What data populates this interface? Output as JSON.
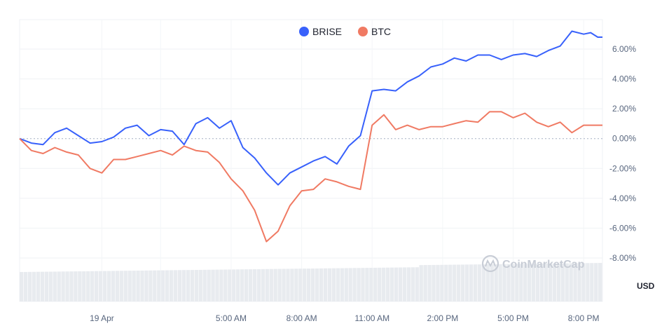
{
  "chart_data": {
    "type": "line",
    "title": "",
    "xlabel": "",
    "ylabel": "",
    "unit_label": "USD",
    "watermark": "CoinMarketCap",
    "y_ticks": [
      "6.00%",
      "4.00%",
      "2.00%",
      "0.00%",
      "-2.00%",
      "-4.00%",
      "-6.00%",
      "-8.00%"
    ],
    "y_tick_values": [
      6,
      4,
      2,
      0,
      -2,
      -4,
      -6,
      -8
    ],
    "ylim": [
      -8.8,
      7.4
    ],
    "x_ticks": [
      "19 Apr",
      "5:00 AM",
      "8:00 AM",
      "11:00 AM",
      "2:00 PM",
      "5:00 PM",
      "8:00 PM"
    ],
    "x_tick_values": [
      3.5,
      9,
      12,
      15,
      18,
      21,
      24
    ],
    "xlim": [
      0,
      24.8
    ],
    "legend_position": "top-center",
    "grid": true,
    "series": [
      {
        "name": "BRISE",
        "color": "#3861fb",
        "x": [
          0,
          0.5,
          1,
          1.5,
          2,
          2.5,
          3,
          3.5,
          4,
          4.5,
          5,
          5.5,
          6,
          6.5,
          7,
          7.5,
          8,
          8.5,
          9,
          9.5,
          10,
          10.5,
          11,
          11.5,
          12,
          12.5,
          13,
          13.5,
          14,
          14.5,
          15,
          15.5,
          16,
          16.5,
          17,
          17.5,
          18,
          18.5,
          19,
          19.5,
          20,
          20.5,
          21,
          21.5,
          22,
          22.5,
          23,
          23.5,
          24,
          24.3,
          24.6,
          24.8
        ],
        "values": [
          0,
          -0.3,
          -0.4,
          0.4,
          0.7,
          0.2,
          -0.3,
          -0.2,
          0.1,
          0.7,
          0.9,
          0.2,
          0.6,
          0.5,
          -0.4,
          1.0,
          1.4,
          0.7,
          1.2,
          -0.6,
          -1.3,
          -2.3,
          -3.1,
          -2.3,
          -1.9,
          -1.5,
          -1.2,
          -1.7,
          -0.5,
          0.2,
          3.2,
          3.3,
          3.2,
          3.8,
          4.2,
          4.8,
          5.0,
          5.4,
          5.2,
          5.6,
          5.6,
          5.3,
          5.6,
          5.7,
          5.5,
          5.9,
          6.2,
          7.2,
          7.0,
          7.1,
          6.8,
          6.8
        ]
      },
      {
        "name": "BTC",
        "color": "#f07a63",
        "x": [
          0,
          0.5,
          1,
          1.5,
          2,
          2.5,
          3,
          3.5,
          4,
          4.5,
          5,
          5.5,
          6,
          6.5,
          7,
          7.5,
          8,
          8.5,
          9,
          9.5,
          10,
          10.5,
          11,
          11.5,
          12,
          12.5,
          13,
          13.5,
          14,
          14.5,
          15,
          15.5,
          16,
          16.5,
          17,
          17.5,
          18,
          18.5,
          19,
          19.5,
          20,
          20.5,
          21,
          21.5,
          22,
          22.5,
          23,
          23.5,
          24,
          24.3,
          24.6,
          24.8
        ],
        "values": [
          0,
          -0.8,
          -1.0,
          -0.6,
          -0.9,
          -1.1,
          -2.0,
          -2.3,
          -1.4,
          -1.4,
          -1.2,
          -1.0,
          -0.8,
          -1.1,
          -0.5,
          -0.8,
          -0.9,
          -1.6,
          -2.7,
          -3.5,
          -4.8,
          -6.9,
          -6.2,
          -4.5,
          -3.5,
          -3.4,
          -2.7,
          -2.9,
          -3.2,
          -3.4,
          0.9,
          1.6,
          0.6,
          0.9,
          0.6,
          0.8,
          0.8,
          1.0,
          1.2,
          1.1,
          1.8,
          1.8,
          1.4,
          1.7,
          1.1,
          0.8,
          1.1,
          0.4,
          0.9,
          0.9,
          0.9,
          0.9
        ]
      }
    ]
  }
}
